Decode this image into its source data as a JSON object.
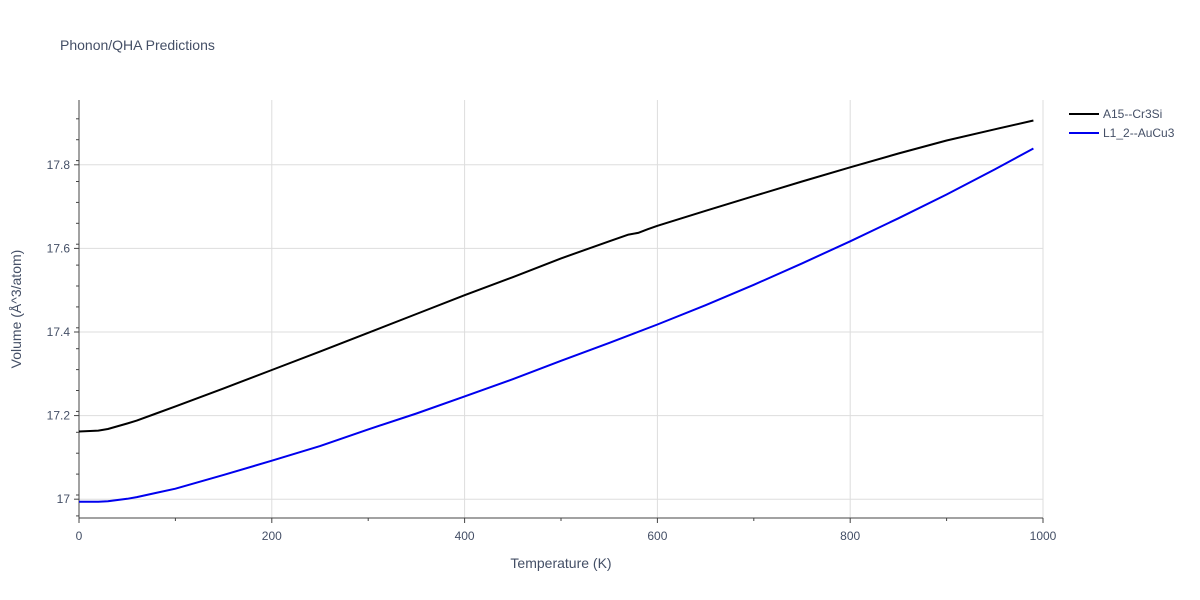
{
  "chart_data": {
    "type": "line",
    "title": "Phonon/QHA Predictions",
    "xlabel": "Temperature (K)",
    "ylabel": "Volume (Å^3/atom)",
    "xlim": [
      0,
      1000
    ],
    "ylim": [
      16.955,
      17.955
    ],
    "x_ticks": [
      0,
      200,
      400,
      600,
      800,
      1000
    ],
    "x_tick_labels": [
      "0",
      "200",
      "400",
      "600",
      "800",
      "1000"
    ],
    "y_ticks": [
      17.0,
      17.2,
      17.4,
      17.6,
      17.8
    ],
    "y_tick_labels": [
      "17",
      "17.2",
      "17.4",
      "17.6",
      "17.8"
    ],
    "grid": true,
    "legend_position": "top-right",
    "series": [
      {
        "name": "A15--Cr3Si",
        "color": "#000000",
        "x": [
          0,
          20,
          30,
          50,
          60,
          80,
          100,
          150,
          200,
          250,
          300,
          350,
          400,
          450,
          500,
          550,
          570,
          580,
          590,
          600,
          650,
          700,
          750,
          800,
          850,
          900,
          950,
          990
        ],
        "y": [
          17.162,
          17.164,
          17.168,
          17.181,
          17.188,
          17.205,
          17.222,
          17.265,
          17.309,
          17.353,
          17.398,
          17.443,
          17.488,
          17.531,
          17.576,
          17.617,
          17.633,
          17.637,
          17.646,
          17.654,
          17.69,
          17.725,
          17.76,
          17.794,
          17.827,
          17.858,
          17.885,
          17.906
        ]
      },
      {
        "name": "L1_2--AuCu3",
        "color": "#0000ee",
        "x": [
          0,
          20,
          30,
          50,
          60,
          80,
          100,
          150,
          200,
          250,
          300,
          350,
          400,
          450,
          500,
          550,
          600,
          650,
          700,
          750,
          800,
          850,
          900,
          950,
          990
        ],
        "y": [
          16.994,
          16.994,
          16.995,
          17.001,
          17.005,
          17.015,
          17.025,
          17.058,
          17.092,
          17.127,
          17.167,
          17.205,
          17.246,
          17.287,
          17.331,
          17.374,
          17.418,
          17.464,
          17.513,
          17.564,
          17.617,
          17.672,
          17.729,
          17.789,
          17.839
        ]
      }
    ]
  }
}
